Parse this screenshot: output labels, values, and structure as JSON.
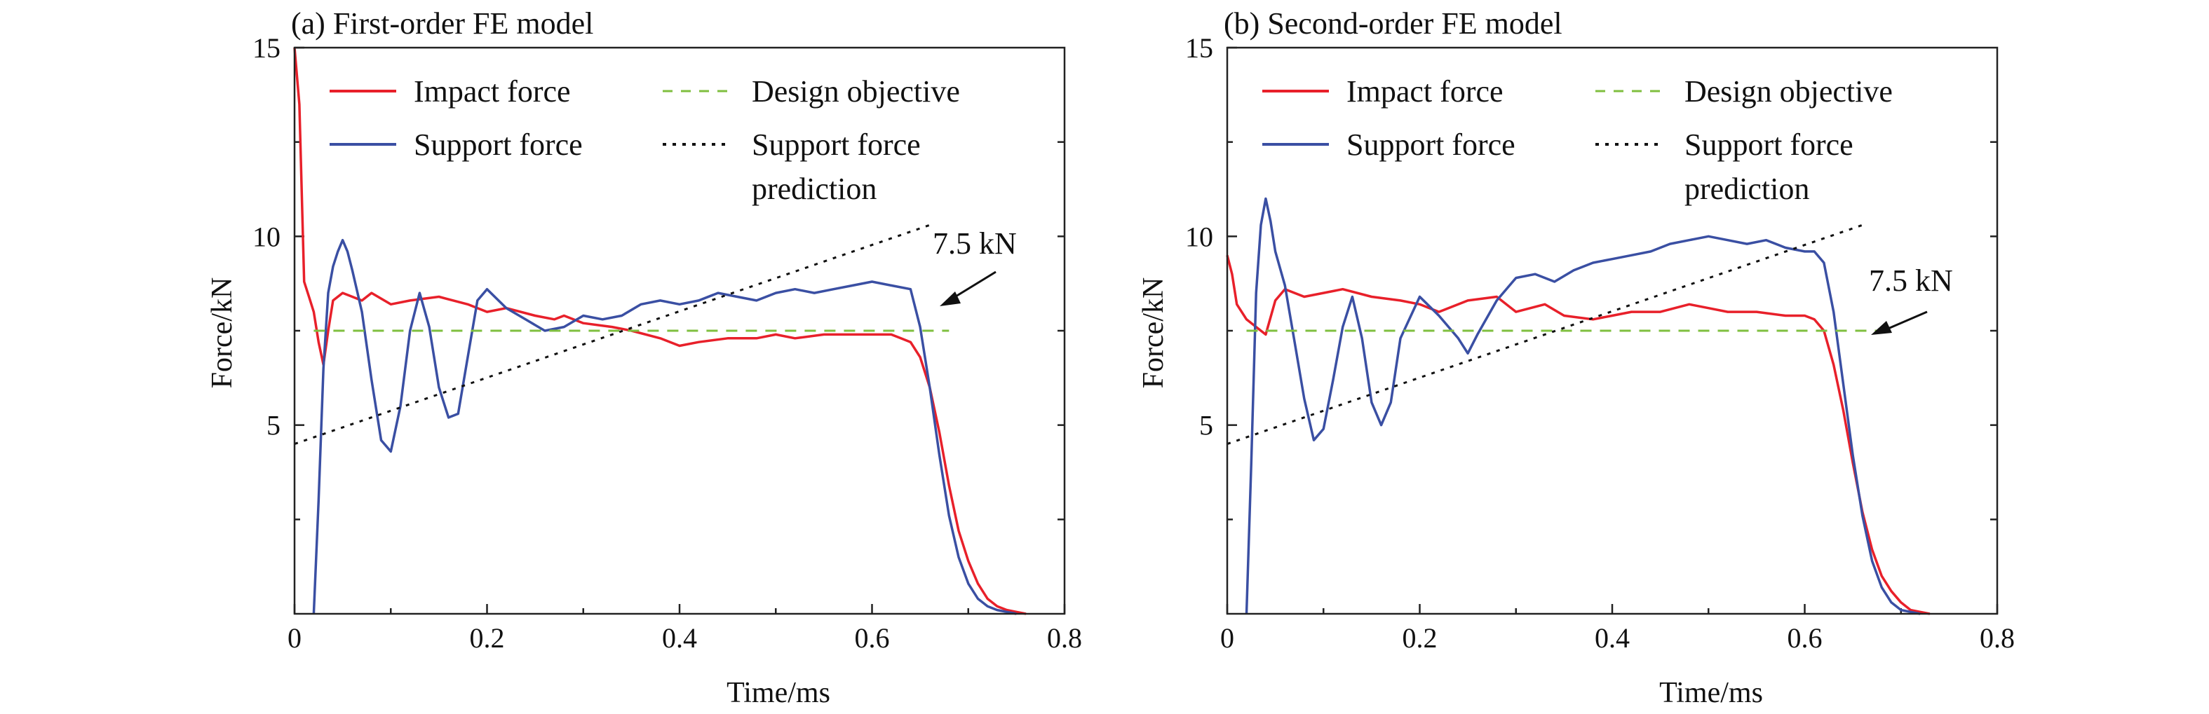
{
  "chart_data": [
    {
      "type": "line",
      "title": "(a) First-order FE model",
      "xlabel": "Time/ms",
      "ylabel": "Force/kN",
      "xlim": [
        0,
        0.8
      ],
      "ylim": [
        0,
        15
      ],
      "xticks": [
        "0",
        "0.2",
        "0.4",
        "0.6",
        "0.8"
      ],
      "yticks": [
        "5",
        "10",
        "15"
      ],
      "grid": false,
      "legend_position": "top",
      "annotation": {
        "text": "7.5 kN",
        "x": 0.67,
        "y": 7.5
      },
      "series": [
        {
          "name": "Impact force",
          "color": "#e8202a",
          "style": "solid",
          "x": [
            0.0,
            0.005,
            0.01,
            0.015,
            0.02,
            0.025,
            0.03,
            0.035,
            0.04,
            0.05,
            0.06,
            0.07,
            0.08,
            0.1,
            0.12,
            0.15,
            0.18,
            0.2,
            0.22,
            0.25,
            0.27,
            0.28,
            0.3,
            0.33,
            0.35,
            0.38,
            0.4,
            0.42,
            0.45,
            0.48,
            0.5,
            0.52,
            0.55,
            0.58,
            0.6,
            0.62,
            0.63,
            0.64,
            0.65,
            0.66,
            0.67,
            0.68,
            0.69,
            0.7,
            0.71,
            0.72,
            0.73,
            0.74,
            0.75,
            0.76
          ],
          "y": [
            15.0,
            13.5,
            8.8,
            8.4,
            8.0,
            7.2,
            6.6,
            7.5,
            8.3,
            8.5,
            8.4,
            8.3,
            8.5,
            8.2,
            8.3,
            8.4,
            8.2,
            8.0,
            8.1,
            7.9,
            7.8,
            7.9,
            7.7,
            7.6,
            7.5,
            7.3,
            7.1,
            7.2,
            7.3,
            7.3,
            7.4,
            7.3,
            7.4,
            7.4,
            7.4,
            7.4,
            7.3,
            7.2,
            6.8,
            6.0,
            4.8,
            3.4,
            2.2,
            1.4,
            0.8,
            0.4,
            0.2,
            0.1,
            0.05,
            0.0
          ]
        },
        {
          "name": "Support force",
          "color": "#3a4fa3",
          "style": "solid",
          "x": [
            0.02,
            0.025,
            0.03,
            0.035,
            0.04,
            0.045,
            0.05,
            0.055,
            0.06,
            0.07,
            0.08,
            0.09,
            0.1,
            0.11,
            0.12,
            0.13,
            0.14,
            0.15,
            0.16,
            0.17,
            0.18,
            0.19,
            0.2,
            0.22,
            0.24,
            0.26,
            0.28,
            0.3,
            0.32,
            0.34,
            0.36,
            0.38,
            0.4,
            0.42,
            0.44,
            0.46,
            0.48,
            0.5,
            0.52,
            0.54,
            0.56,
            0.58,
            0.6,
            0.62,
            0.64,
            0.65,
            0.66,
            0.67,
            0.68,
            0.69,
            0.7,
            0.71,
            0.72,
            0.73,
            0.74,
            0.75
          ],
          "y": [
            0.0,
            3.0,
            6.5,
            8.5,
            9.2,
            9.6,
            9.9,
            9.6,
            9.1,
            8.0,
            6.2,
            4.6,
            4.3,
            5.5,
            7.5,
            8.5,
            7.6,
            6.0,
            5.2,
            5.3,
            6.8,
            8.3,
            8.6,
            8.1,
            7.8,
            7.5,
            7.6,
            7.9,
            7.8,
            7.9,
            8.2,
            8.3,
            8.2,
            8.3,
            8.5,
            8.4,
            8.3,
            8.5,
            8.6,
            8.5,
            8.6,
            8.7,
            8.8,
            8.7,
            8.6,
            7.6,
            6.0,
            4.2,
            2.6,
            1.5,
            0.8,
            0.4,
            0.2,
            0.1,
            0.05,
            0.0
          ]
        },
        {
          "name": "Design objective",
          "color": "#7fbf3f",
          "style": "dashed",
          "x": [
            0.02,
            0.68
          ],
          "y": [
            7.5,
            7.5
          ]
        },
        {
          "name": "Support force prediction",
          "color": "#111111",
          "style": "dotted",
          "x": [
            0.0,
            0.66
          ],
          "y": [
            4.5,
            10.3
          ]
        }
      ]
    },
    {
      "type": "line",
      "title": "(b) Second-order FE model",
      "xlabel": "Time/ms",
      "ylabel": "Force/kN",
      "xlim": [
        0,
        0.8
      ],
      "ylim": [
        0,
        15
      ],
      "xticks": [
        "0",
        "0.2",
        "0.4",
        "0.6",
        "0.8"
      ],
      "yticks": [
        "5",
        "10",
        "15"
      ],
      "grid": false,
      "legend_position": "top",
      "annotation": {
        "text": "7.5 kN",
        "x": 0.67,
        "y": 7.5
      },
      "series": [
        {
          "name": "Impact force",
          "color": "#e8202a",
          "style": "solid",
          "x": [
            0.0,
            0.005,
            0.01,
            0.02,
            0.03,
            0.04,
            0.05,
            0.06,
            0.08,
            0.1,
            0.12,
            0.15,
            0.18,
            0.2,
            0.22,
            0.25,
            0.28,
            0.3,
            0.33,
            0.35,
            0.38,
            0.4,
            0.42,
            0.45,
            0.48,
            0.5,
            0.52,
            0.55,
            0.58,
            0.6,
            0.61,
            0.62,
            0.63,
            0.64,
            0.65,
            0.66,
            0.67,
            0.68,
            0.69,
            0.7,
            0.71,
            0.72,
            0.73
          ],
          "y": [
            9.5,
            9.0,
            8.2,
            7.8,
            7.6,
            7.4,
            8.3,
            8.6,
            8.4,
            8.5,
            8.6,
            8.4,
            8.3,
            8.2,
            8.0,
            8.3,
            8.4,
            8.0,
            8.2,
            7.9,
            7.8,
            7.9,
            8.0,
            8.0,
            8.2,
            8.1,
            8.0,
            8.0,
            7.9,
            7.9,
            7.8,
            7.5,
            6.6,
            5.4,
            4.0,
            2.7,
            1.7,
            1.0,
            0.6,
            0.3,
            0.1,
            0.05,
            0.0
          ]
        },
        {
          "name": "Support force",
          "color": "#3a4fa3",
          "style": "solid",
          "x": [
            0.02,
            0.025,
            0.03,
            0.035,
            0.04,
            0.045,
            0.05,
            0.06,
            0.07,
            0.08,
            0.09,
            0.1,
            0.11,
            0.12,
            0.13,
            0.14,
            0.15,
            0.16,
            0.17,
            0.18,
            0.2,
            0.22,
            0.24,
            0.25,
            0.26,
            0.28,
            0.3,
            0.32,
            0.34,
            0.36,
            0.38,
            0.4,
            0.42,
            0.44,
            0.46,
            0.48,
            0.5,
            0.52,
            0.54,
            0.56,
            0.58,
            0.6,
            0.61,
            0.62,
            0.63,
            0.64,
            0.65,
            0.66,
            0.67,
            0.68,
            0.69,
            0.7,
            0.71,
            0.72
          ],
          "y": [
            0.0,
            4.0,
            8.5,
            10.3,
            11.0,
            10.4,
            9.6,
            8.7,
            7.2,
            5.7,
            4.6,
            4.9,
            6.2,
            7.6,
            8.4,
            7.3,
            5.6,
            5.0,
            5.6,
            7.3,
            8.4,
            7.9,
            7.3,
            6.9,
            7.4,
            8.3,
            8.9,
            9.0,
            8.8,
            9.1,
            9.3,
            9.4,
            9.5,
            9.6,
            9.8,
            9.9,
            10.0,
            9.9,
            9.8,
            9.9,
            9.7,
            9.6,
            9.6,
            9.3,
            8.0,
            6.1,
            4.2,
            2.6,
            1.4,
            0.7,
            0.3,
            0.1,
            0.05,
            0.0
          ]
        },
        {
          "name": "Design objective",
          "color": "#7fbf3f",
          "style": "dashed",
          "x": [
            0.02,
            0.68
          ],
          "y": [
            7.5,
            7.5
          ]
        },
        {
          "name": "Support force prediction",
          "color": "#111111",
          "style": "dotted",
          "x": [
            0.0,
            0.66
          ],
          "y": [
            4.5,
            10.3
          ]
        }
      ]
    }
  ],
  "legend": {
    "impact": "Impact force",
    "support": "Support force",
    "objective": "Design objective",
    "prediction_line1": "Support force",
    "prediction_line2": "prediction"
  }
}
